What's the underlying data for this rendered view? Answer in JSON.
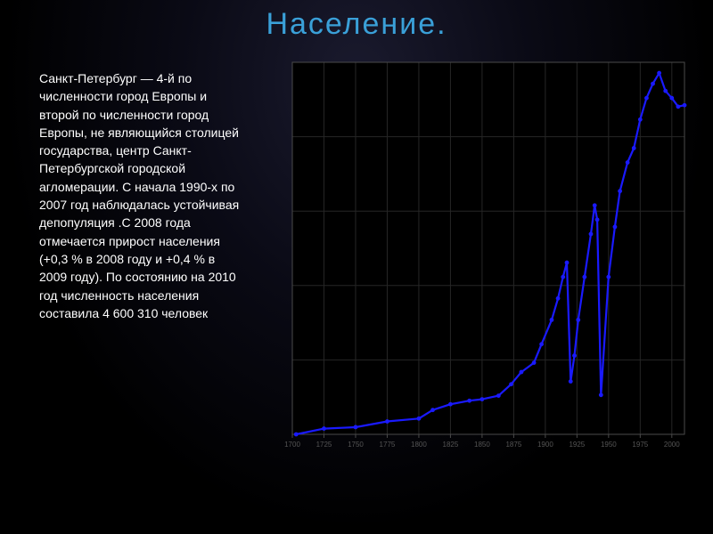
{
  "title": "Население.",
  "title_color": "#3aa0d8",
  "body_text": "Санкт-Петербург — 4-й по численности город Европы и второй по численности город Европы, не являющийся столицей государства, центр Санкт-Петербургской городской агломерации. С начала 1990-х по 2007 год наблюдалась устойчивая депопуляция .С 2008 года отмечается прирост населения (+0,3 % в 2008 году и +0,4 % в 2009 году). По состоянию на 2010 год численность населения составила 4 600 310 человек",
  "chart": {
    "type": "line",
    "plot_bg": "#000000",
    "grid_color": "#262626",
    "axis_color": "#4a4a4a",
    "line_color": "#1a1aff",
    "line_width": 2.2,
    "marker_color": "#1a1aff",
    "marker_radius": 2.4,
    "x_ticks": [
      1700,
      1725,
      1750,
      1775,
      1800,
      1825,
      1850,
      1875,
      1900,
      1925,
      1950,
      1975,
      2000
    ],
    "tick_fontsize": 8,
    "tick_color": "#555555",
    "xlim": [
      1700,
      2010
    ],
    "ylim": [
      0,
      5200000
    ],
    "y_gridlines": 5,
    "points": [
      [
        1703,
        0
      ],
      [
        1725,
        80000
      ],
      [
        1750,
        100000
      ],
      [
        1775,
        180000
      ],
      [
        1800,
        220000
      ],
      [
        1811,
        340000
      ],
      [
        1825,
        420000
      ],
      [
        1840,
        470000
      ],
      [
        1850,
        490000
      ],
      [
        1863,
        540000
      ],
      [
        1873,
        700000
      ],
      [
        1881,
        870000
      ],
      [
        1891,
        1000000
      ],
      [
        1897,
        1260000
      ],
      [
        1905,
        1600000
      ],
      [
        1910,
        1900000
      ],
      [
        1914,
        2200000
      ],
      [
        1917,
        2400000
      ],
      [
        1920,
        740000
      ],
      [
        1923,
        1100000
      ],
      [
        1926,
        1600000
      ],
      [
        1931,
        2200000
      ],
      [
        1936,
        2800000
      ],
      [
        1939,
        3200000
      ],
      [
        1941,
        3000000
      ],
      [
        1944,
        550000
      ],
      [
        1950,
        2200000
      ],
      [
        1955,
        2900000
      ],
      [
        1959,
        3400000
      ],
      [
        1965,
        3800000
      ],
      [
        1970,
        4000000
      ],
      [
        1975,
        4400000
      ],
      [
        1980,
        4700000
      ],
      [
        1985,
        4900000
      ],
      [
        1990,
        5050000
      ],
      [
        1995,
        4800000
      ],
      [
        2000,
        4700000
      ],
      [
        2005,
        4580000
      ],
      [
        2010,
        4600000
      ]
    ]
  }
}
